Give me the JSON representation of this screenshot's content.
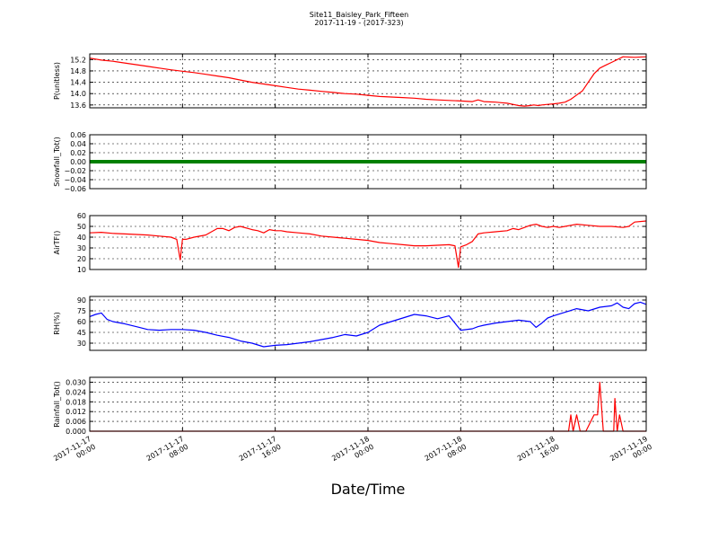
{
  "header": {
    "title": "Site11_Baisley_Park_Fifteen",
    "subtitle": "2017-11-19 - (2017-323)"
  },
  "figure": {
    "xlabel": "Date/Time"
  },
  "chart_data": [
    {
      "type": "line",
      "ylabel": "P(unitless)",
      "ylim": [
        13.5,
        15.4
      ],
      "yticks": [
        "15.2",
        "14.8",
        "14.4",
        "14.0",
        "13.6"
      ],
      "ytick_values": [
        15.2,
        14.8,
        14.4,
        14.0,
        13.6
      ],
      "grid": true,
      "series": [
        {
          "color": "#ff0000",
          "x": [
            0,
            1,
            2,
            3,
            4,
            5,
            6,
            7,
            8,
            9,
            10,
            11,
            12,
            13,
            14,
            15,
            16,
            17,
            18,
            19,
            20,
            21,
            22,
            23,
            24,
            25,
            26,
            27,
            28,
            29,
            30,
            31,
            32,
            33,
            33.5,
            34,
            35,
            35.5,
            36,
            36.5,
            37,
            37.5,
            38,
            38.3,
            38.7,
            39,
            39.5,
            40,
            40.5,
            41,
            41.5,
            42,
            42.5,
            43,
            43.5,
            44,
            44.5,
            45,
            46,
            47,
            48
          ],
          "y": [
            15.25,
            15.18,
            15.14,
            15.08,
            15.02,
            14.96,
            14.9,
            14.84,
            14.79,
            14.74,
            14.68,
            14.62,
            14.56,
            14.48,
            14.4,
            14.34,
            14.28,
            14.22,
            14.16,
            14.12,
            14.08,
            14.04,
            14.0,
            13.98,
            13.94,
            13.9,
            13.88,
            13.86,
            13.84,
            13.8,
            13.78,
            13.76,
            13.74,
            13.72,
            13.78,
            13.72,
            13.7,
            13.68,
            13.66,
            13.62,
            13.58,
            13.56,
            13.58,
            13.6,
            13.58,
            13.6,
            13.62,
            13.64,
            13.66,
            13.7,
            13.8,
            13.95,
            14.1,
            14.4,
            14.7,
            14.9,
            15.0,
            15.1,
            15.3,
            15.28,
            15.3
          ]
        }
      ]
    },
    {
      "type": "line",
      "ylabel": "Snowfall_Tot()",
      "ylim": [
        -0.06,
        0.06
      ],
      "yticks": [
        "0.06",
        "0.04",
        "0.02",
        "0.00",
        "−0.02",
        "−0.04",
        "−0.06"
      ],
      "ytick_values": [
        0.06,
        0.04,
        0.02,
        0.0,
        -0.02,
        -0.04,
        -0.06
      ],
      "grid": true,
      "series": [
        {
          "color": "#008000",
          "x": [
            0,
            48
          ],
          "y": [
            0,
            0
          ]
        }
      ]
    },
    {
      "type": "line",
      "ylabel": "AirTF()",
      "ylim": [
        10,
        60
      ],
      "yticks": [
        "60",
        "50",
        "40",
        "30",
        "20",
        "10"
      ],
      "ytick_values": [
        60,
        50,
        40,
        30,
        20,
        10
      ],
      "grid": true,
      "series": [
        {
          "color": "#ff0000",
          "x": [
            0,
            1,
            2,
            3,
            4,
            5,
            6,
            7,
            7.5,
            7.8,
            8,
            8.3,
            9,
            10,
            11,
            11.5,
            12,
            12.5,
            13,
            14,
            14.5,
            15,
            15.5,
            16,
            16.5,
            17,
            18,
            19,
            20,
            21,
            22,
            23,
            24,
            25,
            26,
            27,
            28,
            29,
            31,
            31.5,
            31.8,
            32,
            32.5,
            33,
            33.5,
            34,
            35,
            36,
            36.5,
            37,
            37.5,
            38,
            38.5,
            39,
            39.5,
            40,
            40.5,
            41,
            41.5,
            42,
            43,
            44,
            45,
            46,
            46.5,
            47,
            48
          ],
          "y": [
            44,
            44.5,
            43.5,
            43,
            42.5,
            42,
            41,
            40,
            38,
            19,
            38,
            38,
            40,
            42,
            48,
            48,
            46,
            49,
            50,
            47,
            46,
            44,
            47,
            46,
            46,
            45,
            44,
            43,
            41,
            40,
            39,
            38,
            37,
            35,
            34,
            33,
            32,
            32,
            33,
            32,
            12,
            31,
            33,
            36,
            43,
            44,
            45,
            46,
            48,
            47,
            49,
            51,
            52,
            50,
            49,
            50,
            49,
            50,
            51,
            52,
            51,
            50,
            50,
            49,
            50,
            54,
            55
          ]
        }
      ]
    },
    {
      "type": "line",
      "ylabel": "RH(%)",
      "ylim": [
        20,
        95
      ],
      "yticks": [
        "90",
        "75",
        "60",
        "45",
        "30"
      ],
      "ytick_values": [
        90,
        75,
        60,
        45,
        30
      ],
      "grid": true,
      "series": [
        {
          "color": "#0000ff",
          "x": [
            0,
            0.5,
            1,
            1.5,
            2,
            3,
            4,
            5,
            6,
            7,
            8,
            9,
            10,
            11,
            12,
            13,
            14,
            15,
            16,
            17,
            18,
            19,
            20,
            21,
            22,
            23,
            24,
            25,
            26,
            27,
            28,
            29,
            30,
            31,
            32,
            33,
            33.5,
            34,
            35,
            36,
            37,
            38,
            38.5,
            39,
            39.5,
            40,
            41,
            42,
            43,
            44,
            45,
            45.5,
            46,
            46.5,
            47,
            47.5,
            48
          ],
          "y": [
            67,
            70,
            72,
            63,
            60,
            57,
            53,
            49,
            48,
            49,
            49,
            48,
            45,
            41,
            38,
            33,
            30,
            25,
            27,
            28,
            30,
            32,
            35,
            38,
            42,
            40,
            45,
            55,
            60,
            65,
            70,
            68,
            64,
            68,
            48,
            50,
            53,
            55,
            58,
            60,
            62,
            60,
            52,
            58,
            65,
            68,
            73,
            78,
            75,
            80,
            82,
            86,
            80,
            78,
            85,
            87,
            84
          ]
        }
      ]
    },
    {
      "type": "line",
      "ylabel": "Rainfall_Tot()",
      "ylim": [
        0,
        0.033
      ],
      "yticks": [
        "0.030",
        "0.024",
        "0.018",
        "0.012",
        "0.006",
        "0.000"
      ],
      "ytick_values": [
        0.03,
        0.024,
        0.018,
        0.012,
        0.006,
        0.0
      ],
      "grid": true,
      "series": [
        {
          "color": "#ff0000",
          "x": [
            0,
            41,
            41.3,
            41.5,
            41.7,
            42,
            42.3,
            42.8,
            43.5,
            43.8,
            44,
            44.3,
            45.2,
            45.3,
            45.5,
            45.7,
            46,
            46.3,
            48
          ],
          "y": [
            0,
            0,
            0,
            0.01,
            0,
            0.01,
            0,
            0,
            0.01,
            0.01,
            0.03,
            0,
            0,
            0.02,
            0,
            0.01,
            0,
            0,
            0
          ]
        }
      ]
    }
  ],
  "x_axis": {
    "range": [
      0,
      48
    ],
    "tick_positions": [
      0,
      8,
      16,
      24,
      32,
      40,
      48
    ],
    "tick_labels": [
      [
        "2017-11-17",
        "00:00"
      ],
      [
        "2017-11-17",
        "08:00"
      ],
      [
        "2017-11-17",
        "16:00"
      ],
      [
        "2017-11-18",
        "00:00"
      ],
      [
        "2017-11-18",
        "08:00"
      ],
      [
        "2017-11-18",
        "16:00"
      ],
      [
        "2017-11-19",
        "00:00"
      ]
    ]
  }
}
